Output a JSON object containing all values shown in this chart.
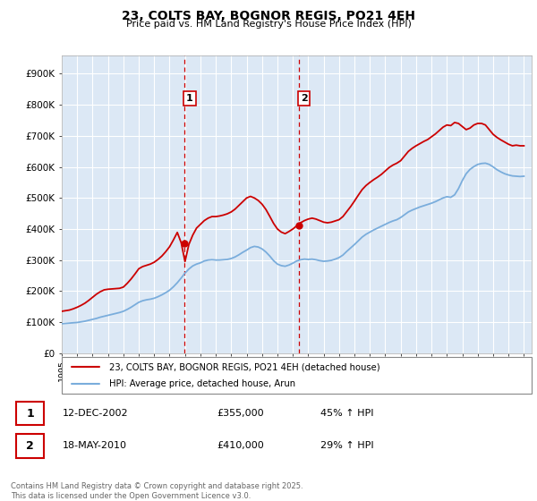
{
  "title": "23, COLTS BAY, BOGNOR REGIS, PO21 4EH",
  "subtitle": "Price paid vs. HM Land Registry's House Price Index (HPI)",
  "yticks": [
    0,
    100000,
    200000,
    300000,
    400000,
    500000,
    600000,
    700000,
    800000,
    900000
  ],
  "ytick_labels": [
    "£0",
    "£100K",
    "£200K",
    "£300K",
    "£400K",
    "£500K",
    "£600K",
    "£700K",
    "£800K",
    "£900K"
  ],
  "ylim": [
    0,
    960000
  ],
  "background_color": "#ffffff",
  "plot_background": "#dce8f5",
  "grid_color": "#ffffff",
  "red_line_color": "#cc0000",
  "blue_line_color": "#7aaddc",
  "vline_color": "#cc0000",
  "marker1_x": 2002.95,
  "marker2_x": 2010.38,
  "marker1_y": 355000,
  "marker2_y": 410000,
  "sale1_label": "1",
  "sale2_label": "2",
  "legend_entry1": "23, COLTS BAY, BOGNOR REGIS, PO21 4EH (detached house)",
  "legend_entry2": "HPI: Average price, detached house, Arun",
  "annotation1_date": "12-DEC-2002",
  "annotation1_price": "£355,000",
  "annotation1_hpi": "45% ↑ HPI",
  "annotation2_date": "18-MAY-2010",
  "annotation2_price": "£410,000",
  "annotation2_hpi": "29% ↑ HPI",
  "footer": "Contains HM Land Registry data © Crown copyright and database right 2025.\nThis data is licensed under the Open Government Licence v3.0.",
  "xmin": 1995,
  "xmax": 2025.5,
  "hpi_data_x": [
    1995.0,
    1995.25,
    1995.5,
    1995.75,
    1996.0,
    1996.25,
    1996.5,
    1996.75,
    1997.0,
    1997.25,
    1997.5,
    1997.75,
    1998.0,
    1998.25,
    1998.5,
    1998.75,
    1999.0,
    1999.25,
    1999.5,
    1999.75,
    2000.0,
    2000.25,
    2000.5,
    2000.75,
    2001.0,
    2001.25,
    2001.5,
    2001.75,
    2002.0,
    2002.25,
    2002.5,
    2002.75,
    2003.0,
    2003.25,
    2003.5,
    2003.75,
    2004.0,
    2004.25,
    2004.5,
    2004.75,
    2005.0,
    2005.25,
    2005.5,
    2005.75,
    2006.0,
    2006.25,
    2006.5,
    2006.75,
    2007.0,
    2007.25,
    2007.5,
    2007.75,
    2008.0,
    2008.25,
    2008.5,
    2008.75,
    2009.0,
    2009.25,
    2009.5,
    2009.75,
    2010.0,
    2010.25,
    2010.5,
    2010.75,
    2011.0,
    2011.25,
    2011.5,
    2011.75,
    2012.0,
    2012.25,
    2012.5,
    2012.75,
    2013.0,
    2013.25,
    2013.5,
    2013.75,
    2014.0,
    2014.25,
    2014.5,
    2014.75,
    2015.0,
    2015.25,
    2015.5,
    2015.75,
    2016.0,
    2016.25,
    2016.5,
    2016.75,
    2017.0,
    2017.25,
    2017.5,
    2017.75,
    2018.0,
    2018.25,
    2018.5,
    2018.75,
    2019.0,
    2019.25,
    2019.5,
    2019.75,
    2020.0,
    2020.25,
    2020.5,
    2020.75,
    2021.0,
    2021.25,
    2021.5,
    2021.75,
    2022.0,
    2022.25,
    2022.5,
    2022.75,
    2023.0,
    2023.25,
    2023.5,
    2023.75,
    2024.0,
    2024.25,
    2024.5,
    2024.75,
    2025.0
  ],
  "hpi_data_y": [
    95000,
    96000,
    97000,
    98000,
    99000,
    101000,
    103000,
    106000,
    109000,
    112000,
    116000,
    119000,
    122000,
    125000,
    128000,
    131000,
    135000,
    141000,
    148000,
    156000,
    164000,
    169000,
    172000,
    174000,
    177000,
    182000,
    188000,
    195000,
    203000,
    214000,
    227000,
    242000,
    258000,
    271000,
    281000,
    287000,
    291000,
    297000,
    300000,
    301000,
    300000,
    300000,
    301000,
    302000,
    305000,
    310000,
    317000,
    325000,
    332000,
    340000,
    344000,
    342000,
    336000,
    326000,
    313000,
    298000,
    287000,
    282000,
    280000,
    284000,
    290000,
    297000,
    301000,
    303000,
    302000,
    303000,
    301000,
    298000,
    296000,
    297000,
    299000,
    303000,
    308000,
    316000,
    328000,
    339000,
    350000,
    362000,
    374000,
    383000,
    390000,
    397000,
    403000,
    409000,
    415000,
    421000,
    426000,
    430000,
    437000,
    446000,
    455000,
    461000,
    466000,
    471000,
    475000,
    479000,
    483000,
    488000,
    494000,
    500000,
    504000,
    502000,
    510000,
    530000,
    556000,
    578000,
    592000,
    601000,
    608000,
    611000,
    612000,
    608000,
    600000,
    591000,
    584000,
    578000,
    574000,
    571000,
    570000,
    569000,
    570000
  ],
  "price_data_x": [
    1995.0,
    1995.25,
    1995.5,
    1995.75,
    1996.0,
    1996.25,
    1996.5,
    1996.75,
    1997.0,
    1997.25,
    1997.5,
    1997.75,
    1998.0,
    1998.25,
    1998.5,
    1998.75,
    1999.0,
    1999.25,
    1999.5,
    1999.75,
    2000.0,
    2000.25,
    2000.5,
    2000.75,
    2001.0,
    2001.25,
    2001.5,
    2001.75,
    2002.0,
    2002.25,
    2002.5,
    2002.75,
    2003.0,
    2003.25,
    2003.5,
    2003.75,
    2004.0,
    2004.25,
    2004.5,
    2004.75,
    2005.0,
    2005.25,
    2005.5,
    2005.75,
    2006.0,
    2006.25,
    2006.5,
    2006.75,
    2007.0,
    2007.25,
    2007.5,
    2007.75,
    2008.0,
    2008.25,
    2008.5,
    2008.75,
    2009.0,
    2009.25,
    2009.5,
    2009.75,
    2010.0,
    2010.25,
    2010.5,
    2010.75,
    2011.0,
    2011.25,
    2011.5,
    2011.75,
    2012.0,
    2012.25,
    2012.5,
    2012.75,
    2013.0,
    2013.25,
    2013.5,
    2013.75,
    2014.0,
    2014.25,
    2014.5,
    2014.75,
    2015.0,
    2015.25,
    2015.5,
    2015.75,
    2016.0,
    2016.25,
    2016.5,
    2016.75,
    2017.0,
    2017.25,
    2017.5,
    2017.75,
    2018.0,
    2018.25,
    2018.5,
    2018.75,
    2019.0,
    2019.25,
    2019.5,
    2019.75,
    2020.0,
    2020.25,
    2020.5,
    2020.75,
    2021.0,
    2021.25,
    2021.5,
    2021.75,
    2022.0,
    2022.25,
    2022.5,
    2022.75,
    2023.0,
    2023.25,
    2023.5,
    2023.75,
    2024.0,
    2024.25,
    2024.5,
    2024.75,
    2025.0
  ],
  "price_data_y": [
    135000,
    137000,
    139000,
    143000,
    148000,
    154000,
    161000,
    170000,
    180000,
    190000,
    198000,
    204000,
    206000,
    207000,
    208000,
    209000,
    213000,
    225000,
    239000,
    255000,
    272000,
    279000,
    283000,
    287000,
    293000,
    302000,
    313000,
    327000,
    343000,
    365000,
    389000,
    356000,
    295000,
    350000,
    380000,
    403000,
    415000,
    427000,
    435000,
    440000,
    440000,
    442000,
    445000,
    449000,
    455000,
    464000,
    476000,
    488000,
    500000,
    505000,
    500000,
    492000,
    480000,
    463000,
    441000,
    418000,
    400000,
    390000,
    385000,
    392000,
    400000,
    410000,
    420000,
    427000,
    432000,
    435000,
    432000,
    427000,
    422000,
    420000,
    422000,
    426000,
    430000,
    440000,
    456000,
    472000,
    490000,
    509000,
    527000,
    540000,
    550000,
    559000,
    567000,
    576000,
    587000,
    598000,
    606000,
    612000,
    620000,
    635000,
    650000,
    660000,
    668000,
    675000,
    682000,
    688000,
    697000,
    706000,
    717000,
    728000,
    735000,
    733000,
    743000,
    740000,
    730000,
    720000,
    725000,
    735000,
    740000,
    740000,
    735000,
    720000,
    705000,
    695000,
    687000,
    680000,
    673000,
    668000,
    670000,
    668000,
    668000
  ]
}
